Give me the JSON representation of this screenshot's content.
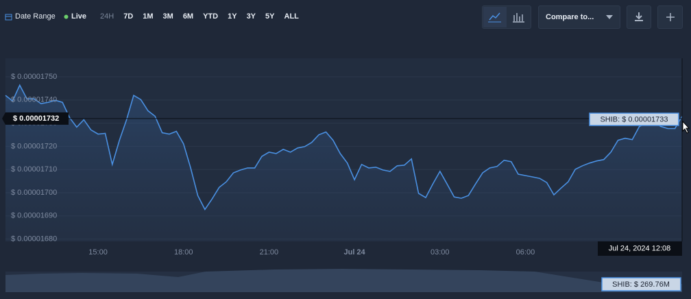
{
  "toolbar": {
    "date_range": "Date Range",
    "live": "Live",
    "ranges": [
      "24H",
      "7D",
      "1M",
      "3M",
      "6M",
      "YTD",
      "1Y",
      "3Y",
      "5Y",
      "ALL"
    ],
    "compare": "Compare to..."
  },
  "chart_data": {
    "type": "line",
    "color": "#4a90e2",
    "categories": [
      null,
      null,
      null,
      null,
      null,
      null,
      null,
      null,
      null,
      null,
      null,
      null,
      null,
      "15:00",
      null,
      null,
      null,
      null,
      null,
      null,
      null,
      null,
      null,
      null,
      null,
      "18:00",
      null,
      null,
      null,
      null,
      null,
      null,
      null,
      null,
      null,
      null,
      null,
      "21:00",
      null,
      null,
      null,
      null,
      null,
      null,
      null,
      null,
      null,
      null,
      null,
      "Jul 24",
      null,
      null,
      null,
      null,
      null,
      null,
      null,
      null,
      null,
      null,
      null,
      "03:00",
      null,
      null,
      null,
      null,
      null,
      null,
      null,
      null,
      null,
      null,
      null,
      "06:00",
      null,
      null,
      null,
      null,
      null,
      null,
      null,
      null,
      null,
      null,
      null,
      null,
      null,
      null,
      null,
      null,
      null,
      null,
      null,
      null,
      null,
      null
    ],
    "values": [
      1.742e-05,
      1.7396e-05,
      1.7464e-05,
      1.7405e-05,
      1.7405e-05,
      1.7384e-05,
      1.739e-05,
      1.7399e-05,
      1.739e-05,
      1.7324e-05,
      1.7283e-05,
      1.7315e-05,
      1.7271e-05,
      1.7253e-05,
      1.7256e-05,
      1.7122e-05,
      1.7226e-05,
      1.7315e-05,
      1.742e-05,
      1.7402e-05,
      1.7354e-05,
      1.733e-05,
      1.7259e-05,
      1.7253e-05,
      1.7265e-05,
      1.7211e-05,
      1.7107e-05,
      1.6988e-05,
      1.6928e-05,
      1.6973e-05,
      1.7023e-05,
      1.7047e-05,
      1.7086e-05,
      1.7098e-05,
      1.7107e-05,
      1.7107e-05,
      1.7157e-05,
      1.7175e-05,
      1.7169e-05,
      1.7187e-05,
      1.7175e-05,
      1.7193e-05,
      1.7199e-05,
      1.7217e-05,
      1.725e-05,
      1.7262e-05,
      1.7226e-05,
      1.7169e-05,
      1.7128e-05,
      1.7056e-05,
      1.7122e-05,
      1.7107e-05,
      1.711e-05,
      1.7098e-05,
      1.7092e-05,
      1.7116e-05,
      1.7119e-05,
      1.7146e-05,
      1.6997e-05,
      1.6979e-05,
      1.7038e-05,
      1.7092e-05,
      1.7038e-05,
      1.6982e-05,
      1.6976e-05,
      1.6988e-05,
      1.7038e-05,
      1.7086e-05,
      1.7107e-05,
      1.7113e-05,
      1.714e-05,
      1.7134e-05,
      1.708e-05,
      1.7074e-05,
      1.7068e-05,
      1.7062e-05,
      1.7044e-05,
      1.6991e-05,
      1.702e-05,
      1.7047e-05,
      1.7101e-05,
      1.7116e-05,
      1.7128e-05,
      1.7137e-05,
      1.7143e-05,
      1.7175e-05,
      1.7226e-05,
      1.7235e-05,
      1.7229e-05,
      1.7286e-05,
      1.73e-05,
      1.7306e-05,
      1.7286e-05,
      1.7277e-05,
      1.7277e-05,
      1.733e-05
    ],
    "ylim": [
      1.679e-05,
      1.758e-05
    ],
    "yticks": [
      {
        "value": 1.68e-05,
        "label": "$ 0.00001680"
      },
      {
        "value": 1.69e-05,
        "label": "$ 0.00001690"
      },
      {
        "value": 1.7e-05,
        "label": "$ 0.00001700"
      },
      {
        "value": 1.71e-05,
        "label": "$ 0.00001710"
      },
      {
        "value": 1.72e-05,
        "label": "$ 0.00001720"
      },
      {
        "value": 1.73e-05,
        "label": "$ 0.00001730"
      },
      {
        "value": 1.74e-05,
        "label": "$ 0.00001740"
      },
      {
        "value": 1.75e-05,
        "label": "$ 0.00001750"
      }
    ],
    "grid": true,
    "crosshair": {
      "value": 1.732e-05,
      "label": "$ 0.00001732"
    },
    "tooltip": "SHIB: $ 0.00001733",
    "time_label": "Jul 24, 2024 12:08",
    "navigator_label": "SHIB: $ 269.76M"
  }
}
